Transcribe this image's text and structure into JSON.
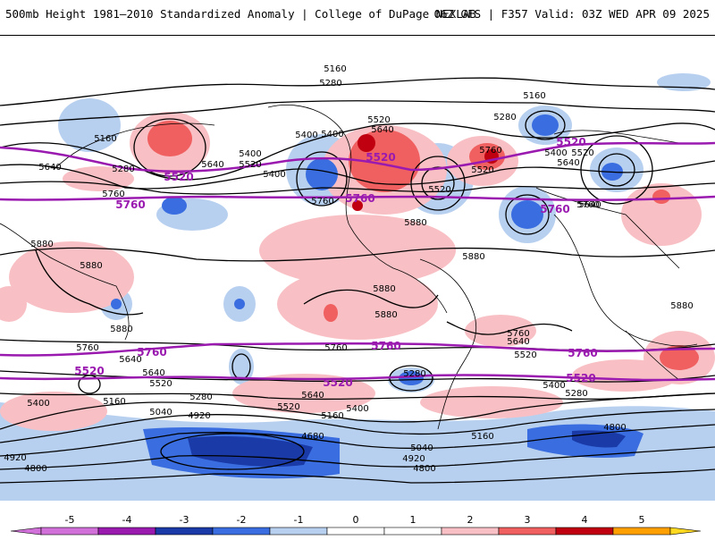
{
  "header": {
    "left_title": "500mb Height 1981–2010 Standardized Anomaly | College of DuPage NEXLAB",
    "right_title": "06Z GFS | F357 Valid: 03Z WED APR 09 2025"
  },
  "colorbar": {
    "ticks": [
      "-5",
      "-4",
      "-3",
      "-2",
      "-1",
      "0",
      "1",
      "2",
      "3",
      "4",
      "5"
    ],
    "colors": [
      "#d070d8",
      "#9a1ab0",
      "#1a3aa8",
      "#3a6ee0",
      "#b8d0f0",
      "#ffffff",
      "#ffffff",
      "#f8c0c4",
      "#f06060",
      "#c00010",
      "#ffa000",
      "#ffd820"
    ]
  },
  "map": {
    "contour_labels": {
      "c5160_a": "5160",
      "c5280_a": "5280",
      "c5160_b": "5160",
      "c5280_b": "5280",
      "c5400_a": "5400",
      "c5520_a": "5520",
      "c5640_a": "5640",
      "c5160_c": "5160",
      "c5280_c": "5280",
      "c5640_b": "5640",
      "c5400_b": "5400",
      "c5520_b": "5520",
      "c5400_c": "5400",
      "c5520_c": "5520",
      "c5640_c": "5640",
      "c5760_a": "5760",
      "c5520_d": "5520",
      "c5640_d": "5640",
      "c5400_d": "5400",
      "c5640_e": "5640",
      "c5760_b": "5760",
      "c5880_a": "5880",
      "c5880_b": "5880",
      "c5760_c": "5760",
      "c5880_c": "5880",
      "c5880_d": "5880",
      "c5880_e": "5880",
      "c5880_f": "5880",
      "c5880_g": "5880",
      "c5880_h": "5880",
      "c5640_f": "5640",
      "c5520_e": "5520",
      "c5760_d": "5760",
      "c5760_e": "5760",
      "c5640_g": "5640",
      "c5520_f": "5520",
      "c5280_d": "5280",
      "c5160_d": "5160",
      "c5040_a": "5040",
      "c4920_a": "4920",
      "c5400_e": "5400",
      "c5640_h": "5640",
      "c5520_g": "5520",
      "c5400_f": "5400",
      "c5160_e": "5160",
      "c4680_a": "4680",
      "c4920_b": "4920",
      "c4800_a": "4800",
      "c5040_b": "5040",
      "c4920_c": "4920",
      "c4800_b": "4800",
      "c5400_g": "5400",
      "c5280_e": "5280",
      "c5160_f": "5160",
      "c4800_c": "4800",
      "c5760_f": "5760",
      "c5640_i": "5640",
      "c5520_h": "5520",
      "c5280_f": "5280",
      "c5760_g": "5760",
      "c5400_h": "5400"
    },
    "highlight_labels": {
      "h5520_a": "5520",
      "h5520_b": "5520",
      "h5520_c": "5520",
      "h5760_a": "5760",
      "h5760_b": "5760",
      "h5760_c": "5760",
      "h5760_d": "5760",
      "h5760_e": "5760",
      "h5760_f": "5760",
      "h5520_d": "5520",
      "h5520_e": "5520",
      "h5520_f": "5520"
    }
  }
}
